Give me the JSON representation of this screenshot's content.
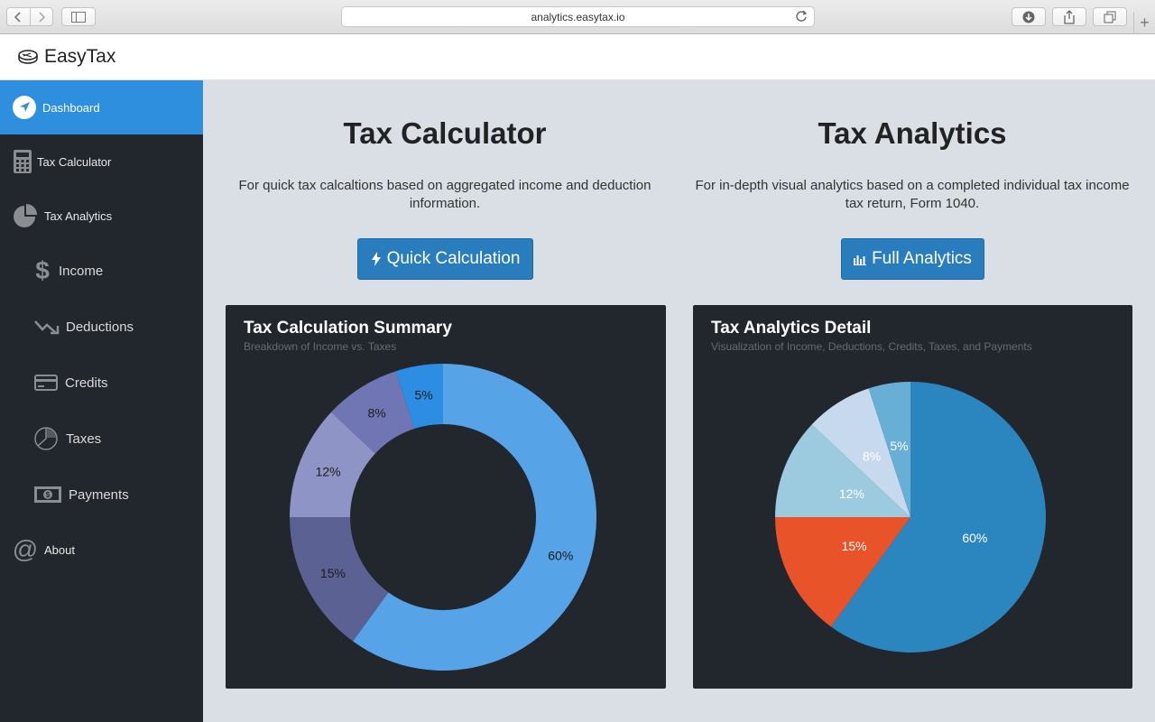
{
  "browser": {
    "url": "analytics.easytax.io"
  },
  "header": {
    "brand": "EasyTax"
  },
  "sidebar": {
    "items": [
      {
        "label": "Dashboard",
        "icon": "navigation-arrow-icon",
        "active": true
      },
      {
        "label": "Tax Calculator",
        "icon": "calculator-icon"
      },
      {
        "label": "Tax Analytics",
        "icon": "pie-chart-icon"
      },
      {
        "label": "Income",
        "icon": "dollar-icon",
        "sub": true
      },
      {
        "label": "Deductions",
        "icon": "trend-down-icon",
        "sub": true
      },
      {
        "label": "Credits",
        "icon": "credit-card-icon",
        "sub": true
      },
      {
        "label": "Taxes",
        "icon": "pie-outline-icon",
        "sub": true
      },
      {
        "label": "Payments",
        "icon": "money-icon",
        "sub": true
      },
      {
        "label": "About",
        "icon": "at-sign-icon"
      }
    ]
  },
  "calculator": {
    "title": "Tax Calculator",
    "description": "For quick tax calcaltions based on aggregated income and deduction information.",
    "button_label": "Quick Calculation"
  },
  "analytics": {
    "title": "Tax Analytics",
    "description": "For in-depth visual analytics based on a completed individual tax income tax return, Form 1040.",
    "button_label": "Full Analytics"
  },
  "accent_color": "#2d8fdd",
  "chart_data": [
    {
      "type": "pie",
      "variant": "donut",
      "title": "Tax Calculation Summary",
      "subtitle": "Breakdown of Income vs. Taxes",
      "slices": [
        {
          "label": "60%",
          "value": 60,
          "color": "#57a3e8"
        },
        {
          "label": "15%",
          "value": 15,
          "color": "#5b6193"
        },
        {
          "label": "12%",
          "value": 12,
          "color": "#8e94c6"
        },
        {
          "label": "8%",
          "value": 8,
          "color": "#6f76b3"
        },
        {
          "label": "5%",
          "value": 5,
          "color": "#2c8de2"
        }
      ]
    },
    {
      "type": "pie",
      "title": "Tax Analytics Detail",
      "subtitle": "Visualization of Income, Deductions, Credits, Taxes, and Payments",
      "slices": [
        {
          "label": "60%",
          "value": 60,
          "color": "#2b86c0"
        },
        {
          "label": "15%",
          "value": 15,
          "color": "#e9532a"
        },
        {
          "label": "12%",
          "value": 12,
          "color": "#9ccbe0"
        },
        {
          "label": "8%",
          "value": 8,
          "color": "#c7d9ee"
        },
        {
          "label": "5%",
          "value": 5,
          "color": "#67afd4"
        }
      ]
    }
  ]
}
